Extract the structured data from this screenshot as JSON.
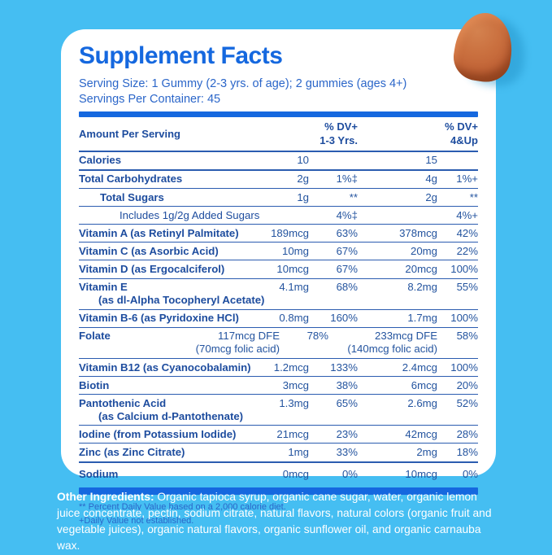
{
  "colors": {
    "background": "#45BEF2",
    "accent_blue": "#1568DF",
    "text_navy": "#1D4C9E",
    "serving_blue": "#2B66C9",
    "gummy_orange": "#C66B3C",
    "card_white": "#FFFFFF"
  },
  "card": {
    "title": "Supplement Facts",
    "serving_size": "Serving Size: 1 Gummy (2-3 yrs. of age); 2 gummies (ages 4+)",
    "servings_per_container": "Servings Per Container: 45"
  },
  "table": {
    "header": {
      "amount_label": "Amount Per Serving",
      "dv1": "% DV+\n1-3 Yrs.",
      "dv2": "% DV+\n4&Up"
    },
    "rows": [
      {
        "name": "Calories",
        "bold": true,
        "amt1": "10",
        "dv1": "",
        "amt2": "15",
        "dv2": "",
        "sep": "medium"
      },
      {
        "name": "Total Carbohydrates",
        "bold": true,
        "amt1": "2g",
        "dv1": "1%‡",
        "amt2": "4g",
        "dv2": "1%+",
        "sep": "thin"
      },
      {
        "name": "Total Sugars",
        "bold": true,
        "indent": 1,
        "amt1": "1g",
        "dv1": "**",
        "amt2": "2g",
        "dv2": "**",
        "sep": "thin"
      },
      {
        "name": "Includes 1g/2g Added Sugars",
        "bold": false,
        "indent": 2,
        "amt1": "",
        "dv1": "4%‡",
        "amt2": "",
        "dv2": "4%+",
        "sep": "thin"
      },
      {
        "name": "Vitamin A (as Retinyl Palmitate)",
        "bold": true,
        "amt1": "189mcg",
        "dv1": "63%",
        "amt2": "378mcg",
        "dv2": "42%",
        "sep": "thin"
      },
      {
        "name": "Vitamin C (as Asorbic Acid)",
        "bold": true,
        "amt1": "10mg",
        "dv1": "67%",
        "amt2": "20mg",
        "dv2": "22%",
        "sep": "thin"
      },
      {
        "name": "Vitamin D (as Ergocalciferol)",
        "bold": true,
        "amt1": "10mcg",
        "dv1": "67%",
        "amt2": "20mcg",
        "dv2": "100%",
        "sep": "thin"
      },
      {
        "name": "Vitamin E",
        "name2": "(as dl-Alpha Tocopheryl Acetate)",
        "bold": true,
        "amt1": "4.1mg",
        "dv1": "68%",
        "amt2": "8.2mg",
        "dv2": "55%",
        "sep": "thin"
      },
      {
        "name": "Vitamin B-6 (as Pyridoxine HCl)",
        "bold": true,
        "amt1": "0.8mg",
        "dv1": "160%",
        "amt2": "1.7mg",
        "dv2": "100%",
        "sep": "thin"
      },
      {
        "name": "Folate",
        "bold": true,
        "wide": true,
        "amt1": "117mcg DFE",
        "amt1b": "(70mcg folic acid)",
        "dv1": "78%",
        "amt2": "233mcg DFE",
        "amt2b": "(140mcg folic acid)",
        "dv2": "58%",
        "sep": "thin"
      },
      {
        "name": "Vitamin B12 (as Cyanocobalamin)",
        "bold": true,
        "amt1": "1.2mcg",
        "dv1": "133%",
        "amt2": "2.4mcg",
        "dv2": "100%",
        "sep": "thin"
      },
      {
        "name": "Biotin",
        "bold": true,
        "amt1": "3mcg",
        "dv1": "38%",
        "amt2": "6mcg",
        "dv2": "20%",
        "sep": "thin"
      },
      {
        "name": "Pantothenic Acid",
        "name2": "(as Calcium d-Pantothenate)",
        "bold": true,
        "amt1": "1.3mg",
        "dv1": "65%",
        "amt2": "2.6mg",
        "dv2": "52%",
        "sep": "thin"
      },
      {
        "name": "Iodine (from Potassium Iodide)",
        "bold": true,
        "amt1": "21mcg",
        "dv1": "23%",
        "amt2": "42mcg",
        "dv2": "28%",
        "sep": "thin"
      },
      {
        "name": "Zinc (as Zinc Citrate)",
        "bold": true,
        "amt1": "1mg",
        "dv1": "33%",
        "amt2": "2mg",
        "dv2": "18%",
        "sep": "medium"
      },
      {
        "name": "Sodium",
        "bold": true,
        "cls": "row-sodium",
        "amt1": "0mcg",
        "dv1": "0%",
        "amt2": "10mcg",
        "dv2": "0%",
        "sep": "none"
      }
    ],
    "footnotes": [
      "** Percent Daily Value based on a 2,000 calorie diet.",
      "+Daily Value not established."
    ]
  },
  "other_ingredients": {
    "label": "Other Ingredients:",
    "text": " Organic tapioca syrup, organic cane sugar, water, organic lemon juice concentrate, pectin, sodium citrate, natural flavors, natural colors (organic fruit and vegetable juices), organic natural flavors, organic sunflower oil, and organic carnauba wax."
  },
  "gummy": {
    "description": "orange gummy"
  }
}
